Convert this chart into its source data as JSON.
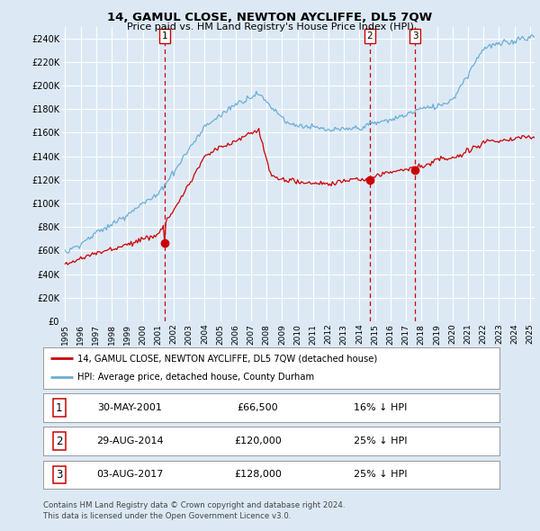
{
  "title": "14, GAMUL CLOSE, NEWTON AYCLIFFE, DL5 7QW",
  "subtitle": "Price paid vs. HM Land Registry's House Price Index (HPI)",
  "background_color": "#dce9f5",
  "plot_bg_color": "#dce9f5",
  "grid_color": "#ffffff",
  "y_min": 0,
  "y_max": 250000,
  "y_ticks": [
    0,
    20000,
    40000,
    60000,
    80000,
    100000,
    120000,
    140000,
    160000,
    180000,
    200000,
    220000,
    240000
  ],
  "y_tick_labels": [
    "£0",
    "£20K",
    "£40K",
    "£60K",
    "£80K",
    "£100K",
    "£120K",
    "£140K",
    "£160K",
    "£180K",
    "£200K",
    "£220K",
    "£240K"
  ],
  "hpi_color": "#6baed6",
  "price_color": "#cc0000",
  "sale_marker_color": "#cc0000",
  "sale_year_floats": [
    2001.41,
    2014.66,
    2017.58
  ],
  "sale_prices": [
    66500,
    120000,
    128000
  ],
  "sale_labels": [
    "1",
    "2",
    "3"
  ],
  "legend_label_price": "14, GAMUL CLOSE, NEWTON AYCLIFFE, DL5 7QW (detached house)",
  "legend_label_hpi": "HPI: Average price, detached house, County Durham",
  "table_rows": [
    {
      "num": "1",
      "date": "30-MAY-2001",
      "price": "£66,500",
      "hpi": "16% ↓ HPI"
    },
    {
      "num": "2",
      "date": "29-AUG-2014",
      "price": "£120,000",
      "hpi": "25% ↓ HPI"
    },
    {
      "num": "3",
      "date": "03-AUG-2017",
      "price": "£128,000",
      "hpi": "25% ↓ HPI"
    }
  ],
  "footer": "Contains HM Land Registry data © Crown copyright and database right 2024.\nThis data is licensed under the Open Government Licence v3.0.",
  "x_start_year": 1995,
  "x_end_year": 2026,
  "x_tick_years": [
    1995,
    1996,
    1997,
    1998,
    1999,
    2000,
    2001,
    2002,
    2003,
    2004,
    2005,
    2006,
    2007,
    2008,
    2009,
    2010,
    2011,
    2012,
    2013,
    2014,
    2015,
    2016,
    2017,
    2018,
    2019,
    2020,
    2021,
    2022,
    2023,
    2024,
    2025
  ]
}
